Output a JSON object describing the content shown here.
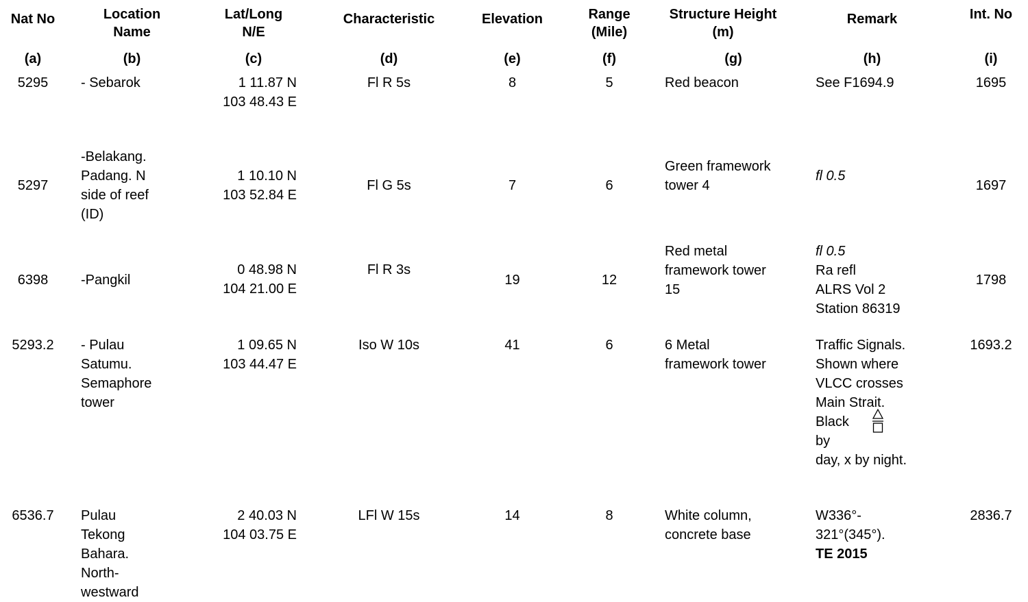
{
  "headers": {
    "nat_no": "Nat No",
    "location": "Location\nName",
    "latlong": "Lat/Long\nN/E",
    "characteristic": "Characteristic",
    "elevation": "Elevation",
    "range": "Range\n(Mile)",
    "structure": "Structure Height\n(m)",
    "remark": "Remark",
    "int_no": "Int. No"
  },
  "letters": {
    "a": "(a)",
    "b": "(b)",
    "c": "(c)",
    "d": "(d)",
    "e": "(e)",
    "f": "(f)",
    "g": "(g)",
    "h": "(h)",
    "i": "(i)"
  },
  "rows": [
    {
      "nat_no": "5295",
      "location": "- Sebarok",
      "latlong": "1 11.87 N\n103 48.43 E",
      "characteristic": "Fl R 5s",
      "elevation": "8",
      "range": "5",
      "structure": "Red beacon",
      "remark": "See F1694.9",
      "int_no": "1695"
    },
    {
      "nat_no": "5297",
      "location": "-Belakang.\nPadang. N\nside of reef\n(ID)",
      "latlong": "1 10.10 N\n103 52.84 E",
      "characteristic": "Fl G 5s",
      "elevation": "7",
      "range": "6",
      "structure": "Green framework\ntower 4",
      "remark": "fl 0.5",
      "int_no": "1697"
    },
    {
      "nat_no": "6398",
      "location": "-Pangkil",
      "latlong": "0 48.98 N\n104 21.00 E",
      "characteristic": "Fl R 3s",
      "elevation": "19",
      "range": "12",
      "structure": "Red metal\nframework tower\n15",
      "remark_italic": "fl 0.5",
      "remark": "Ra refl\nALRS Vol 2\nStation 86319",
      "int_no": "1798"
    },
    {
      "nat_no": "5293.2",
      "location": "- Pulau\nSatumu.\nSemaphore\ntower",
      "latlong": "1 09.65 N\n103 44.47 E",
      "characteristic": "Iso W 10s",
      "elevation": "41",
      "range": "6",
      "structure": "6 Metal\nframework tower",
      "remark": "Traffic Signals.\nShown where\nVLCC crosses\nMain Strait.\nBlack\nby\nday, x by night.",
      "int_no": "1693.2"
    },
    {
      "nat_no": "6536.7",
      "location": "Pulau\nTekong\nBahara.\nNorth-\nwestward",
      "latlong": "2 40.03 N\n104 03.75 E",
      "characteristic": "LFl W 15s",
      "elevation": "14",
      "range": "8",
      "structure": "White column,\nconcrete base",
      "remark": "W336°-\n321°(345°).",
      "remark_bold": "TE 2015",
      "int_no": "2836.7"
    }
  ]
}
